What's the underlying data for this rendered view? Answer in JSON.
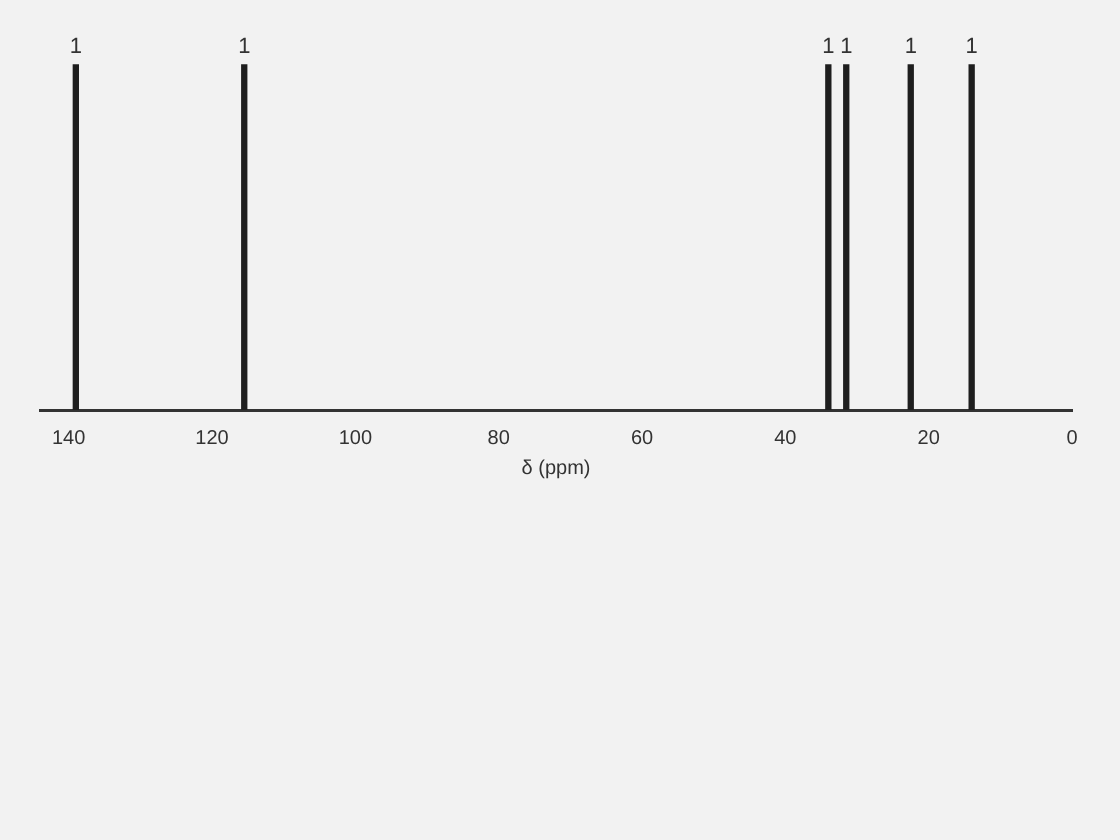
{
  "chart_data": {
    "type": "bar",
    "xlabel": "δ (ppm)",
    "x": [
      139,
      115.5,
      34,
      31.5,
      22.5,
      14
    ],
    "series": [
      {
        "color": "#1e1e1e",
        "values": [
          1,
          1,
          1,
          1,
          1,
          1
        ]
      }
    ],
    "data_labels": true,
    "tick_labels": "x",
    "xlim": [
      144,
      0
    ],
    "xticks": [
      140,
      120,
      100,
      80,
      60,
      40,
      20,
      0
    ],
    "grid": false,
    "legend": false
  }
}
